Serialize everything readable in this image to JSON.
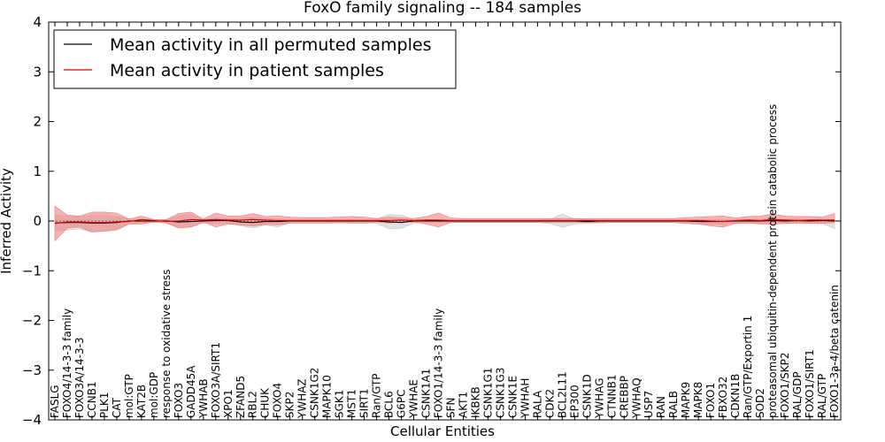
{
  "chart_data": {
    "type": "line",
    "title": "FoxO family signaling -- 184 samples",
    "xlabel": "Cellular Entities",
    "ylabel": "Inferred Activity",
    "ylim": [
      -4,
      4
    ],
    "yticks": [
      -4,
      -3,
      -2,
      -1,
      0,
      1,
      2,
      3,
      4
    ],
    "ytick_labels": [
      "−4",
      "−3",
      "−2",
      "−1",
      "0",
      "1",
      "2",
      "3",
      "4"
    ],
    "grid": false,
    "legend_position": "top-left",
    "categories": [
      "FASLG",
      "FOXO4/14-3-3 family",
      "FOXO3A/14-3-3",
      "CCNB1",
      "PLK1",
      "CAT",
      "mol:GTP",
      "KAT2B",
      "mol:GDP",
      "response to oxidative stress",
      "FOXO3",
      "GADD45A",
      "YWHAB",
      "FOXO3A/SIRT1",
      "XPO1",
      "ZFAND5",
      "RBL2",
      "CHUK",
      "FOXO4",
      "SKP2",
      "YWHAZ",
      "CSNK1G2",
      "MAPK10",
      "SGK1",
      "MST1",
      "SIRT1",
      "Ran/GTP",
      "BCL6",
      "G6PC",
      "YWHAE",
      "CSNK1A1",
      "FOXO1/14-3-3 family",
      "SFN",
      "AKT1",
      "IKBKB",
      "CSNK1G1",
      "CSNK1G3",
      "CSNK1E",
      "YWHAH",
      "RALA",
      "CDK2",
      "BCL2L11",
      "EP300",
      "CSNK1D",
      "YWHAG",
      "CTNNB1",
      "CREBBP",
      "YWHAQ",
      "USP7",
      "RAN",
      "RALB",
      "MAPK9",
      "MAPK8",
      "FOXO1",
      "FBXO32",
      "CDKN1B",
      "Ran/GTP/Exportin 1",
      "SOD2",
      "proteasomal ubiquitin-dependent protein catabolic process",
      "FOXO1/SKP2",
      "RAL/GDP",
      "FOXO1/SIRT1",
      "RAL/GTP",
      "FOXO1-3a-4/beta catenin"
    ],
    "series": [
      {
        "name": "Mean activity in all permuted samples",
        "color": "#000000",
        "band_color": "#c8c8c8",
        "values": [
          -0.04,
          -0.03,
          -0.03,
          -0.04,
          -0.04,
          -0.03,
          0,
          0,
          0,
          0,
          -0.02,
          -0.01,
          0,
          0.01,
          0.01,
          -0.02,
          -0.03,
          -0.01,
          -0.01,
          0,
          0,
          0,
          0,
          0,
          0,
          0,
          0,
          -0.02,
          -0.03,
          0,
          0,
          0,
          0,
          0,
          0,
          0,
          0,
          0,
          0,
          0,
          0,
          0,
          0,
          -0.01,
          0,
          0,
          0,
          0,
          0,
          0,
          0,
          0,
          -0.01,
          -0.01,
          -0.01,
          0,
          0,
          0,
          0.01,
          0,
          0.01,
          0,
          0.01,
          0
        ],
        "upper": [
          0.12,
          0.1,
          0.09,
          0.11,
          0.11,
          0.09,
          0.04,
          0.02,
          0.02,
          0.02,
          0.1,
          0.13,
          0.03,
          0.06,
          0.05,
          0.06,
          0.07,
          0.05,
          0.04,
          0.03,
          0.03,
          0.03,
          0.03,
          0.03,
          0.03,
          0.03,
          0.04,
          0.13,
          0.12,
          0.03,
          0.03,
          0.02,
          0.02,
          0.02,
          0.02,
          0.02,
          0.02,
          0.02,
          0.02,
          0.02,
          0.03,
          0.14,
          0.04,
          0.03,
          0.02,
          0.02,
          0.02,
          0.02,
          0.02,
          0.02,
          0.02,
          0.02,
          0.03,
          0.03,
          0.03,
          0.02,
          0.03,
          0.04,
          0.05,
          0.03,
          0.04,
          0.03,
          0.04,
          0.03
        ],
        "lower": [
          -0.2,
          -0.18,
          -0.16,
          -0.22,
          -0.21,
          -0.18,
          -0.06,
          -0.03,
          -0.03,
          -0.03,
          -0.14,
          -0.12,
          -0.04,
          -0.05,
          -0.04,
          -0.1,
          -0.14,
          -0.08,
          -0.12,
          -0.04,
          -0.04,
          -0.04,
          -0.04,
          -0.04,
          -0.04,
          -0.04,
          -0.05,
          -0.16,
          -0.15,
          -0.04,
          -0.03,
          -0.03,
          -0.03,
          -0.03,
          -0.03,
          -0.03,
          -0.03,
          -0.03,
          -0.03,
          -0.03,
          -0.05,
          -0.13,
          -0.06,
          -0.05,
          -0.04,
          -0.03,
          -0.03,
          -0.03,
          -0.03,
          -0.03,
          -0.03,
          -0.03,
          -0.05,
          -0.06,
          -0.06,
          -0.04,
          -0.04,
          -0.04,
          -0.04,
          -0.04,
          -0.04,
          -0.04,
          -0.05,
          -0.15
        ]
      },
      {
        "name": "Mean activity in patient samples",
        "color": "#e00000",
        "band_color": "#f08080",
        "values": [
          -0.05,
          -0.02,
          -0.02,
          -0.03,
          -0.03,
          -0.02,
          -0.01,
          0.03,
          0.01,
          -0.01,
          0,
          0.03,
          0.02,
          0.03,
          0.02,
          0.02,
          0.03,
          0.02,
          0.01,
          0.01,
          0.01,
          0.01,
          0.01,
          0.01,
          0.01,
          0.01,
          0.01,
          0.01,
          0.02,
          0.01,
          0.02,
          0.02,
          0.01,
          0.01,
          0.01,
          0.01,
          0.01,
          0.01,
          0.01,
          0.01,
          0.01,
          0.01,
          0.01,
          0.01,
          0.01,
          0.01,
          0.01,
          0.01,
          0.01,
          0.01,
          0.01,
          0.01,
          0.01,
          0,
          -0.01,
          0.01,
          0.02,
          0.01,
          0.03,
          0.02,
          0.01,
          0.02,
          0.02,
          0.02
        ],
        "upper": [
          0.3,
          0.12,
          0.1,
          0.18,
          0.18,
          0.16,
          0.04,
          0.1,
          0.03,
          0.03,
          0.15,
          0.18,
          0.04,
          0.16,
          0.1,
          0.1,
          0.15,
          0.09,
          0.1,
          0.08,
          0.07,
          0.07,
          0.07,
          0.08,
          0.09,
          0.08,
          0.05,
          0.08,
          0.06,
          0.05,
          0.09,
          0.16,
          0.06,
          0.05,
          0.05,
          0.05,
          0.05,
          0.05,
          0.05,
          0.05,
          0.05,
          0.05,
          0.05,
          0.05,
          0.05,
          0.05,
          0.05,
          0.05,
          0.05,
          0.05,
          0.05,
          0.07,
          0.08,
          0.09,
          0.1,
          0.06,
          0.09,
          0.1,
          0.14,
          0.1,
          0.09,
          0.09,
          0.08,
          0.15
        ],
        "lower": [
          -0.4,
          -0.14,
          -0.12,
          -0.22,
          -0.2,
          -0.18,
          -0.06,
          -0.06,
          -0.02,
          -0.04,
          -0.14,
          -0.12,
          -0.02,
          -0.12,
          -0.06,
          -0.08,
          -0.1,
          -0.07,
          -0.08,
          -0.04,
          -0.04,
          -0.04,
          -0.04,
          -0.03,
          -0.04,
          -0.04,
          -0.02,
          -0.04,
          -0.02,
          -0.02,
          -0.06,
          -0.12,
          -0.03,
          -0.03,
          -0.03,
          -0.03,
          -0.03,
          -0.03,
          -0.03,
          -0.03,
          -0.03,
          -0.03,
          -0.03,
          -0.03,
          -0.03,
          -0.03,
          -0.03,
          -0.03,
          -0.03,
          -0.03,
          -0.03,
          -0.05,
          -0.06,
          -0.1,
          -0.12,
          -0.05,
          -0.04,
          -0.06,
          -0.06,
          -0.05,
          -0.04,
          -0.05,
          -0.05,
          -0.03
        ]
      }
    ]
  }
}
